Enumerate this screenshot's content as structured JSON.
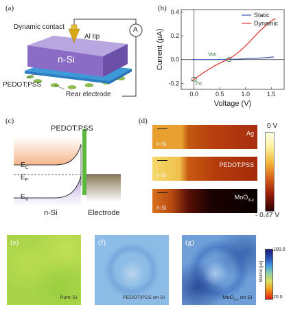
{
  "panel_a": {
    "label": "(a)",
    "dynamic_contact": "Dynamic contact",
    "al_tip": "Al tip",
    "ammeter": "A",
    "n_si": "n-Si",
    "pedot": "PEDOT:PSS",
    "rear": "Rear electrode"
  },
  "panel_b": {
    "label": "(b)",
    "annot_voc": "Voc",
    "annot_jsc": "Jsc"
  },
  "chart_data": {
    "type": "line",
    "xlabel": "Voltage (V)",
    "ylabel": "Current (μA)",
    "xlim": [
      -0.25,
      1.75
    ],
    "ylim": [
      -0.25,
      0.42
    ],
    "xticks": [
      "0.0",
      "0.5",
      "1.0",
      "1.5"
    ],
    "yticks": [
      "-0.2",
      "0.0",
      "0.2",
      "0.4"
    ],
    "legend_position": "top-right",
    "series": [
      {
        "name": "Static",
        "color": "#3a5ba8",
        "x": [
          -0.05,
          0.2,
          0.5,
          0.8,
          1.1,
          1.4,
          1.55
        ],
        "y": [
          0.0,
          0.0,
          0.0,
          0.003,
          0.008,
          0.016,
          0.022
        ]
      },
      {
        "name": "Dynamic",
        "color": "#e32b2b",
        "x": [
          -0.05,
          0.0,
          0.1,
          0.2,
          0.3,
          0.4,
          0.5,
          0.6,
          0.65,
          0.7,
          0.8,
          0.9,
          1.0,
          1.1,
          1.2,
          1.3,
          1.4,
          1.5,
          1.58
        ],
        "y": [
          -0.18,
          -0.165,
          -0.135,
          -0.105,
          -0.078,
          -0.052,
          -0.03,
          -0.01,
          0.0,
          0.012,
          0.04,
          0.075,
          0.115,
          0.16,
          0.205,
          0.25,
          0.29,
          0.325,
          0.345
        ]
      }
    ]
  },
  "panel_c": {
    "label": "(c)",
    "pedot": "PEDOT:PSS",
    "ec": "E",
    "ec_sub": "C",
    "ef": "E",
    "ef_sub": "F",
    "ev": "E",
    "ev_sub": "V",
    "n_si": "n-Si",
    "electrode": "Electrode"
  },
  "panel_d": {
    "label": "(d)",
    "maps": [
      {
        "name": "Ag",
        "name_sub": "",
        "si": "n-Si"
      },
      {
        "name": "PEDOT:PSS",
        "name_sub": "",
        "si": "n-Si"
      },
      {
        "name": "MoO",
        "name_sub": "3-x",
        "si": "n-Si"
      }
    ],
    "scale_top": "0 V",
    "scale_bottom": "- 0.47 V"
  },
  "panel_efg": {
    "maps": [
      {
        "label": "(e)",
        "caption": "Pure Si",
        "caption_sub": "",
        "caption_tail": ""
      },
      {
        "label": "(f)",
        "caption": "PEDOT:PSS on Si",
        "caption_sub": "",
        "caption_tail": ""
      },
      {
        "label": "(g)",
        "caption": "MoO",
        "caption_sub": "3-x",
        "caption_tail": " on Si"
      }
    ],
    "scale_max": "100.0",
    "scale_min": "20.0",
    "scale_title": "lifetime [μs]"
  }
}
